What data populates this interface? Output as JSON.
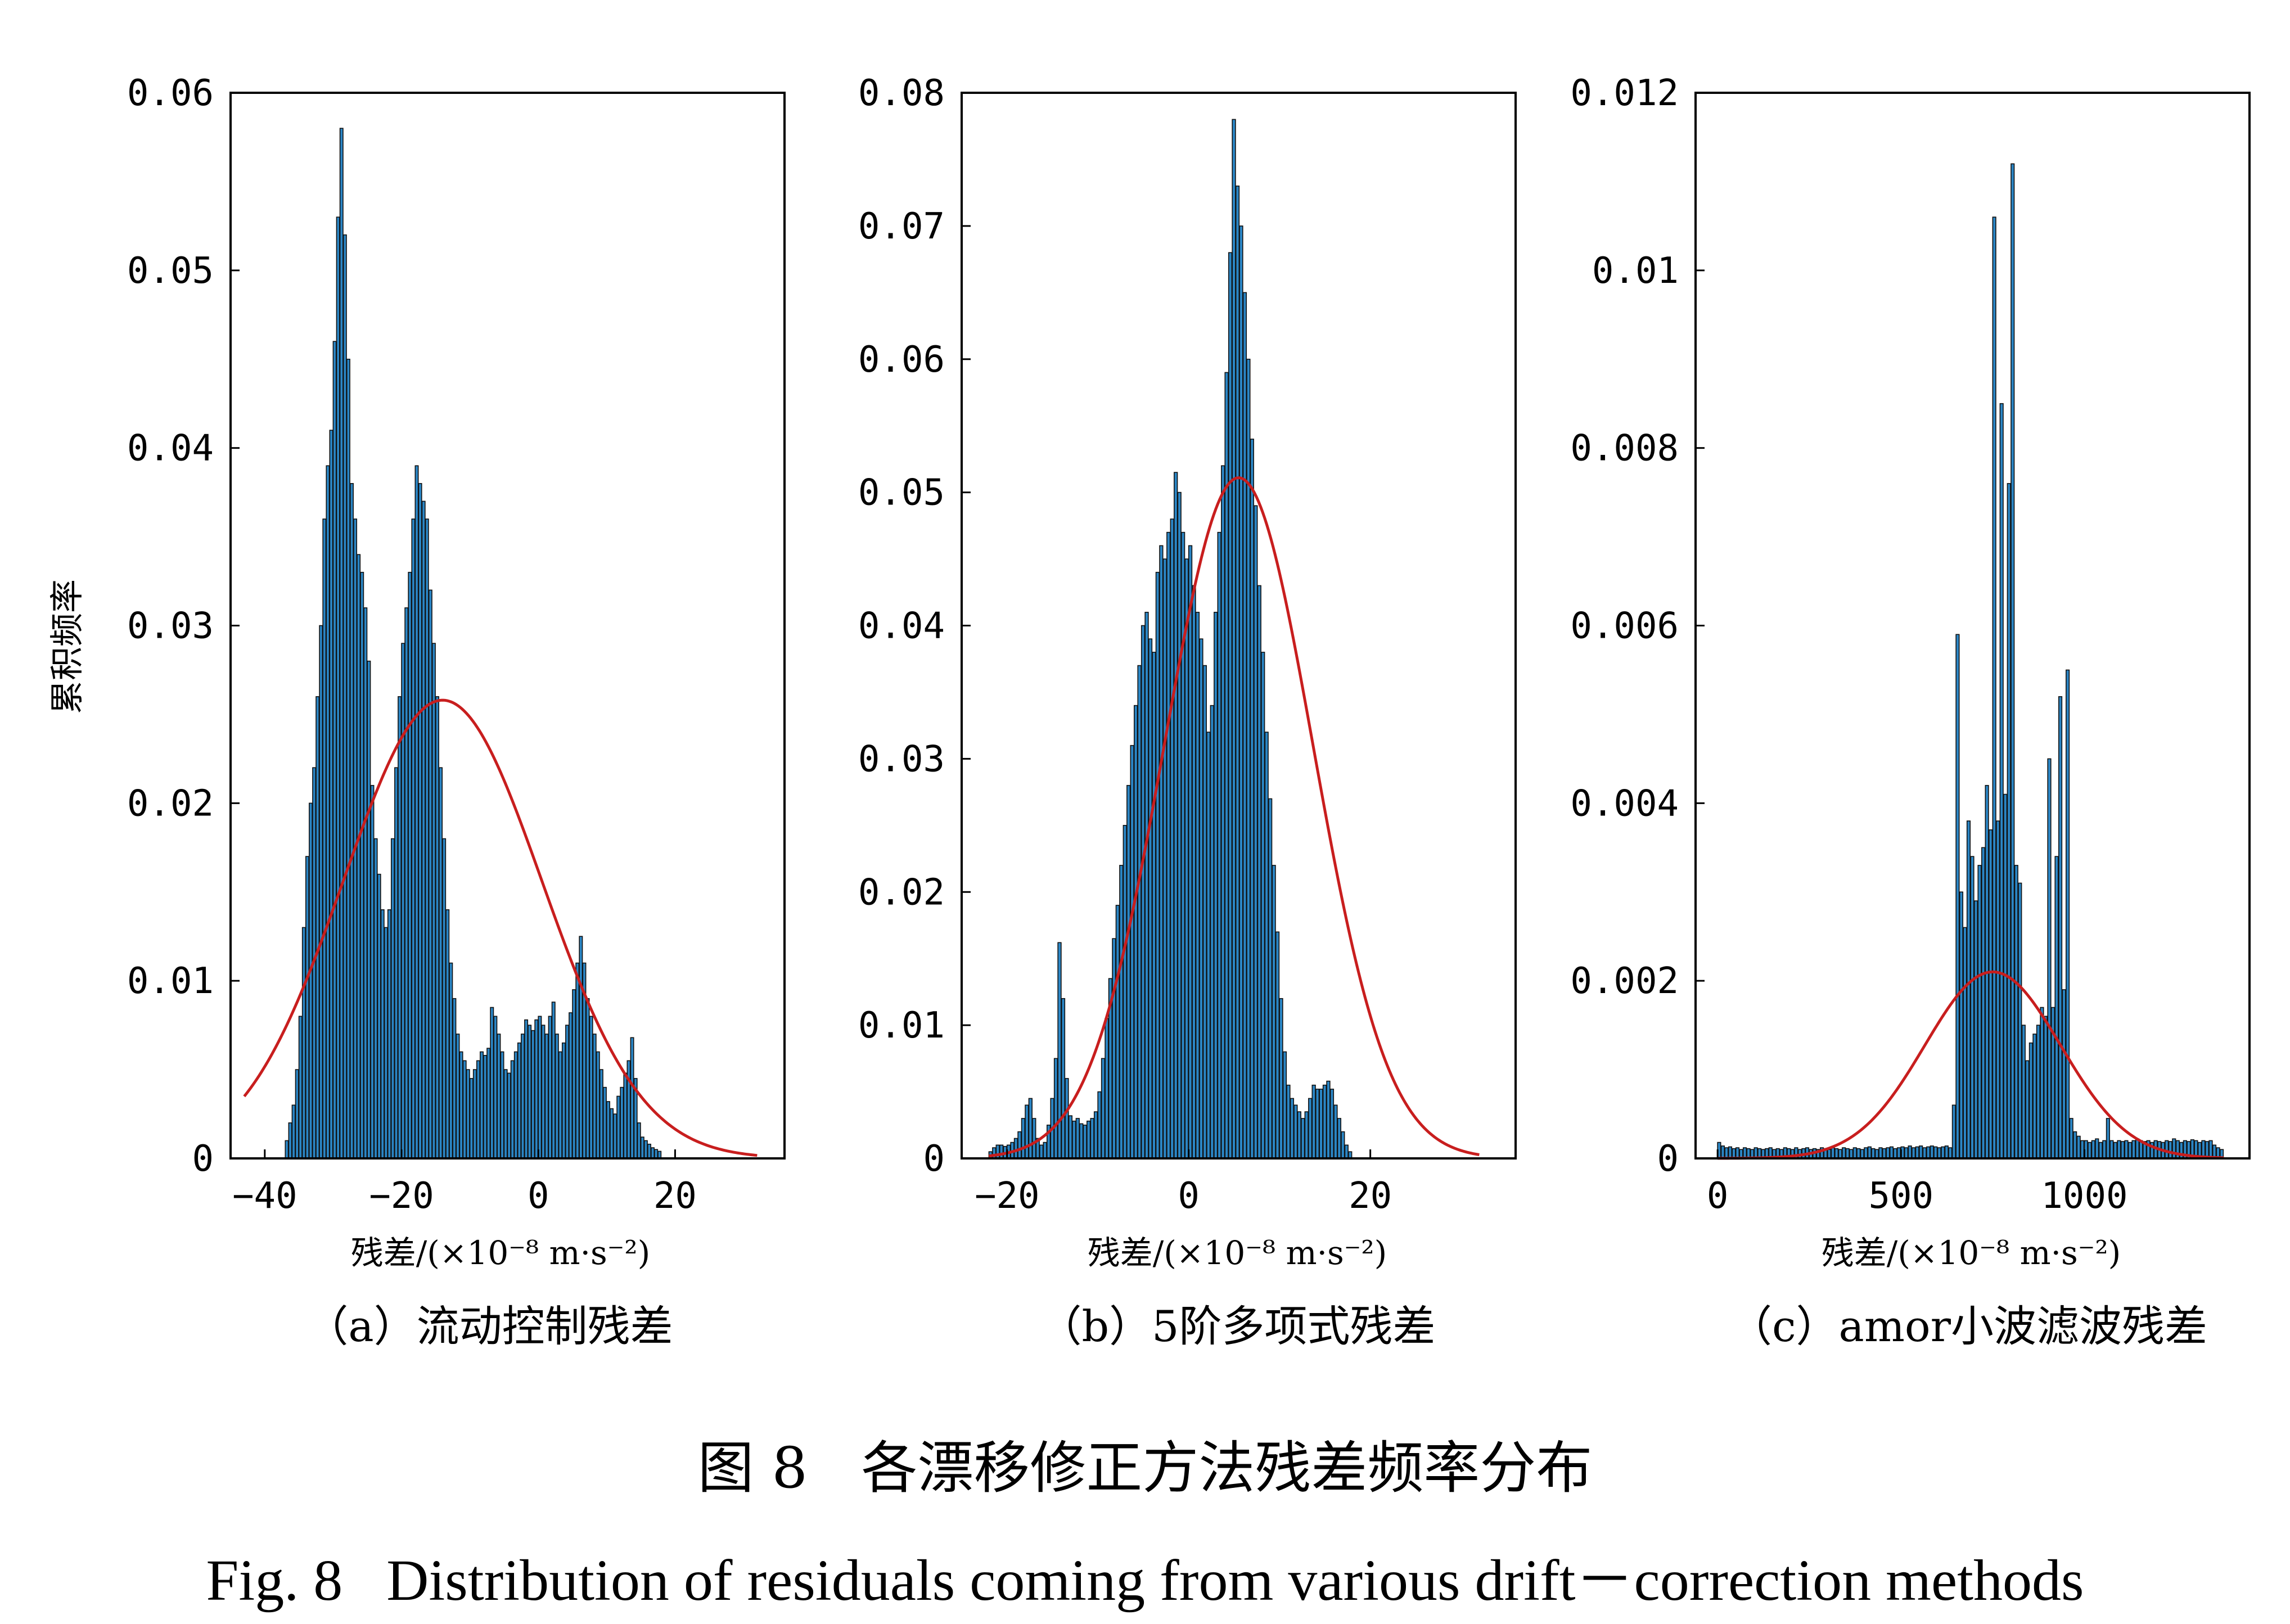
{
  "figure": {
    "title_cn": "图 8   各漂移修正方法残差频率分布",
    "title_en": "Fig. 8   Distribution of residuals coming from various drift－correction methods",
    "ylabel": "累积频率"
  },
  "colors": {
    "bar": "#2b86c5",
    "bar_edge": "#111111",
    "fit": "#c81e1e",
    "axis": "#000000"
  },
  "chart_data": [
    {
      "type": "bar",
      "subtitle": "（a）流动控制残差",
      "xlabel": "残差/(×10⁻⁸ m·s⁻²)",
      "ylabel": "累积频率",
      "xlim": [
        -45,
        36
      ],
      "ylim": [
        0,
        0.06
      ],
      "xticks": [
        -40,
        -20,
        0,
        20
      ],
      "xtick_labels": [
        "−40",
        "−20",
        "0",
        "20"
      ],
      "yticks": [
        0,
        0.01,
        0.02,
        0.03,
        0.04,
        0.05,
        0.06
      ],
      "ytick_labels": [
        "0",
        "0.01",
        "0.02",
        "0.03",
        "0.04",
        "0.05",
        "0.06"
      ],
      "grid": false,
      "histogram": {
        "bin_start": -37,
        "bin_width": 0.5,
        "values": [
          0.001,
          0.002,
          0.003,
          0.005,
          0.008,
          0.013,
          0.017,
          0.02,
          0.022,
          0.026,
          0.03,
          0.036,
          0.039,
          0.041,
          0.046,
          0.053,
          0.058,
          0.052,
          0.045,
          0.038,
          0.036,
          0.034,
          0.033,
          0.031,
          0.028,
          0.021,
          0.018,
          0.016,
          0.014,
          0.013,
          0.014,
          0.018,
          0.022,
          0.026,
          0.029,
          0.031,
          0.033,
          0.036,
          0.039,
          0.038,
          0.037,
          0.036,
          0.032,
          0.029,
          0.026,
          0.022,
          0.018,
          0.014,
          0.011,
          0.009,
          0.007,
          0.006,
          0.0055,
          0.005,
          0.0045,
          0.005,
          0.0055,
          0.006,
          0.0058,
          0.0062,
          0.0085,
          0.008,
          0.007,
          0.006,
          0.005,
          0.0048,
          0.0055,
          0.006,
          0.0065,
          0.007,
          0.0078,
          0.0075,
          0.0072,
          0.0078,
          0.008,
          0.0075,
          0.007,
          0.008,
          0.0088,
          0.007,
          0.006,
          0.0065,
          0.0075,
          0.0082,
          0.0095,
          0.011,
          0.0125,
          0.011,
          0.009,
          0.008,
          0.007,
          0.006,
          0.005,
          0.004,
          0.0032,
          0.0028,
          0.0025,
          0.0035,
          0.004,
          0.0048,
          0.0055,
          0.0068,
          0.0045,
          0.002,
          0.0012,
          0.001,
          0.0008,
          0.0006,
          0.0005,
          0.0004
        ]
      },
      "fit_curve": {
        "mean": -14,
        "sd": 14.5,
        "peak": 0.0258,
        "x_start": -43,
        "x_end": 32
      }
    },
    {
      "type": "bar",
      "subtitle": "（b）5阶多项式残差",
      "xlabel": "残差/(×10⁻⁸ m·s⁻²)",
      "ylabel": "累积频率",
      "xlim": [
        -25,
        36
      ],
      "ylim": [
        0,
        0.08
      ],
      "xticks": [
        -20,
        0,
        20
      ],
      "xtick_labels": [
        "−20",
        "0",
        "20"
      ],
      "yticks": [
        0,
        0.01,
        0.02,
        0.03,
        0.04,
        0.05,
        0.06,
        0.07,
        0.08
      ],
      "ytick_labels": [
        "0",
        "0.01",
        "0.02",
        "0.03",
        "0.04",
        "0.05",
        "0.06",
        "0.07",
        "0.08"
      ],
      "grid": false,
      "histogram": {
        "bin_start": -22,
        "bin_width": 0.4,
        "values": [
          0.0005,
          0.0008,
          0.001,
          0.001,
          0.0009,
          0.001,
          0.0012,
          0.0015,
          0.002,
          0.003,
          0.004,
          0.0045,
          0.003,
          0.0015,
          0.001,
          0.0012,
          0.0025,
          0.0045,
          0.0075,
          0.0162,
          0.012,
          0.006,
          0.0032,
          0.0028,
          0.003,
          0.0026,
          0.0025,
          0.0028,
          0.003,
          0.0035,
          0.005,
          0.0075,
          0.0105,
          0.0135,
          0.0165,
          0.019,
          0.022,
          0.025,
          0.028,
          0.031,
          0.034,
          0.037,
          0.04,
          0.041,
          0.039,
          0.038,
          0.044,
          0.046,
          0.045,
          0.047,
          0.048,
          0.0515,
          0.05,
          0.047,
          0.045,
          0.046,
          0.043,
          0.041,
          0.039,
          0.037,
          0.032,
          0.034,
          0.041,
          0.047,
          0.052,
          0.059,
          0.068,
          0.078,
          0.073,
          0.07,
          0.065,
          0.06,
          0.054,
          0.049,
          0.043,
          0.038,
          0.032,
          0.027,
          0.022,
          0.017,
          0.012,
          0.008,
          0.0055,
          0.0045,
          0.004,
          0.0035,
          0.003,
          0.0035,
          0.0045,
          0.0055,
          0.0052,
          0.0052,
          0.0055,
          0.0058,
          0.0052,
          0.004,
          0.003,
          0.002,
          0.001,
          0.0005
        ]
      },
      "fit_curve": {
        "mean": 5.5,
        "sd": 8.2,
        "peak": 0.0511,
        "x_start": -22,
        "x_end": 32
      }
    },
    {
      "type": "bar",
      "subtitle": "（c）amor小波滤波残差",
      "xlabel": "残差/(×10⁻⁸ m·s⁻²)",
      "ylabel": "累积频率",
      "xlim": [
        -60,
        1450
      ],
      "ylim": [
        0,
        0.012
      ],
      "xticks": [
        0,
        500,
        1000
      ],
      "xtick_labels": [
        "0",
        "500",
        "1000"
      ],
      "yticks": [
        0,
        0.002,
        0.004,
        0.006,
        0.008,
        0.01,
        0.012
      ],
      "ytick_labels": [
        "0",
        "0.002",
        "0.004",
        "0.006",
        "0.008",
        "0.01",
        "0.012"
      ],
      "grid": false,
      "histogram": {
        "bin_start": 0,
        "bin_width": 10,
        "values": [
          0.00018,
          0.00014,
          0.00012,
          0.00013,
          0.00011,
          0.00012,
          0.0001,
          0.00012,
          0.00011,
          0.0001,
          0.00012,
          0.00011,
          0.0001,
          0.00011,
          0.00012,
          0.0001,
          0.00011,
          0.0001,
          0.00012,
          0.00011,
          0.0001,
          0.00012,
          0.0001,
          0.00011,
          0.00012,
          0.0001,
          0.00011,
          0.0001,
          0.00012,
          0.00011,
          0.0001,
          0.00012,
          0.00011,
          0.0001,
          0.00012,
          0.00011,
          0.0001,
          0.00012,
          0.00011,
          0.0001,
          0.00012,
          0.00013,
          0.00011,
          0.0001,
          0.00012,
          0.00011,
          0.00012,
          0.00013,
          0.00011,
          0.00012,
          0.00013,
          0.00012,
          0.00014,
          0.00012,
          0.00013,
          0.00014,
          0.00012,
          0.00013,
          0.00014,
          0.00013,
          0.00012,
          0.00013,
          0.00014,
          0.00012,
          0.0006,
          0.0059,
          0.003,
          0.0026,
          0.0038,
          0.0034,
          0.0029,
          0.0033,
          0.0035,
          0.0042,
          0.0037,
          0.0106,
          0.0038,
          0.0085,
          0.0041,
          0.0076,
          0.0112,
          0.0033,
          0.0031,
          0.0015,
          0.0011,
          0.0013,
          0.0014,
          0.0015,
          0.0017,
          0.0016,
          0.0045,
          0.0017,
          0.0034,
          0.0052,
          0.0019,
          0.0055,
          0.00045,
          0.0003,
          0.00025,
          0.0002,
          0.0002,
          0.00018,
          0.0002,
          0.00022,
          0.00018,
          0.0002,
          0.00045,
          0.0002,
          0.00018,
          0.0002,
          0.00019,
          0.0002,
          0.00018,
          0.0002,
          0.00022,
          0.0002,
          0.00019,
          0.0002,
          0.00018,
          0.0002,
          0.00019,
          0.00018,
          0.0002,
          0.00019,
          0.00022,
          0.0002,
          0.00018,
          0.0002,
          0.00019,
          0.00021,
          0.0002,
          0.00018,
          0.0002,
          0.00019,
          0.0002,
          0.00015,
          0.00012,
          0.0001
        ]
      },
      "fit_curve": {
        "mean": 750,
        "sd": 185,
        "peak": 0.0021,
        "x_start": 0,
        "x_end": 1380
      }
    }
  ]
}
